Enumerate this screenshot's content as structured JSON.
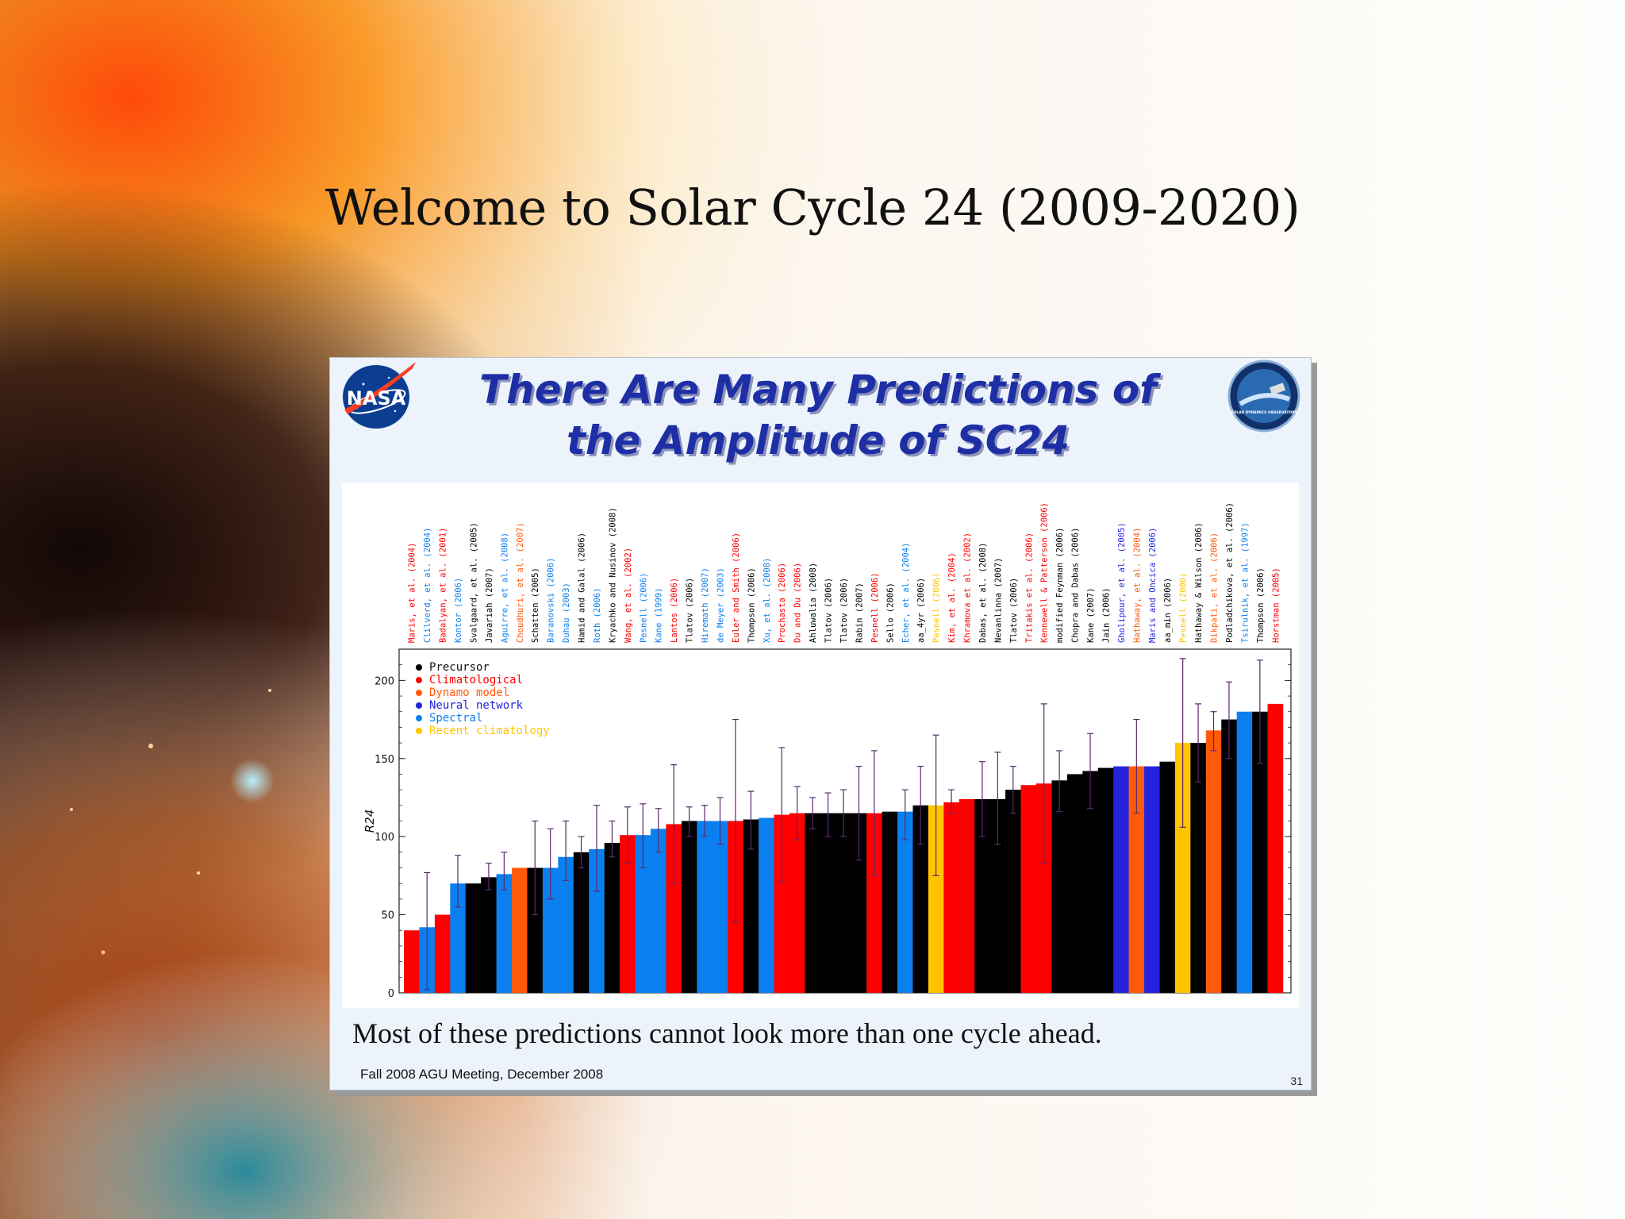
{
  "slide": {
    "title": "Welcome to Solar Cycle 24 (2009-2020)"
  },
  "inner": {
    "title_line1": "There Are Many Predictions of",
    "title_line2": "the Amplitude of SC24",
    "caption": "Most of these predictions cannot look more than one cycle ahead.",
    "footer": "Fall 2008 AGU Meeting, December 2008",
    "page_number": "31",
    "nasa_logo_text": "NASA",
    "sdo_logo_text": "SOLAR DYNAMICS OBSERVATORY"
  },
  "colors": {
    "Precursor": "#000000",
    "Climatological": "#ff0000",
    "Dynamo model": "#ff5a0a",
    "Neural network": "#2424dc",
    "Spectral": "#0a80f0",
    "Recent climatology": "#ffc400",
    "error_bar": "#5a2a6a",
    "title_blue": "#1e2fa6"
  },
  "chart_data": {
    "type": "bar",
    "ylabel": "R24",
    "ylim": [
      0,
      220
    ],
    "yticks": [
      0,
      50,
      100,
      150,
      200
    ],
    "legend": {
      "position": "top-left",
      "entries": [
        "Precursor",
        "Climatological",
        "Dynamo model",
        "Neural network",
        "Spectral",
        "Recent climatology"
      ]
    },
    "bars": [
      {
        "label": "Maris, et al. (2004)",
        "cat": "Climatological",
        "value": 40
      },
      {
        "label": "Clilverd, et al. (2004)",
        "cat": "Spectral",
        "value": 42,
        "err": [
          2,
          77
        ]
      },
      {
        "label": "Badalyan, et al. (2001)",
        "cat": "Climatological",
        "value": 50
      },
      {
        "label": "Kontor (2006)",
        "cat": "Spectral",
        "value": 70,
        "err": [
          55,
          88
        ]
      },
      {
        "label": "Svalgaard, et al. (2005)",
        "cat": "Precursor",
        "value": 70
      },
      {
        "label": "Javariah (2007)",
        "cat": "Precursor",
        "value": 74,
        "err": [
          66,
          83
        ]
      },
      {
        "label": "Aguirre, et al. (2008)",
        "cat": "Spectral",
        "value": 76,
        "err": [
          66,
          90
        ]
      },
      {
        "label": "Choudhuri, et al. (2007)",
        "cat": "Dynamo model",
        "value": 80
      },
      {
        "label": "Schatten (2005)",
        "cat": "Precursor",
        "value": 80,
        "err": [
          50,
          110
        ]
      },
      {
        "label": "Baranovski (2006)",
        "cat": "Spectral",
        "value": 80,
        "err": [
          60,
          105
        ]
      },
      {
        "label": "Duhau (2003)",
        "cat": "Spectral",
        "value": 87,
        "err": [
          72,
          110
        ]
      },
      {
        "label": "Hamid and Galal (2006)",
        "cat": "Precursor",
        "value": 90,
        "err": [
          80,
          100
        ]
      },
      {
        "label": "Roth (2006)",
        "cat": "Spectral",
        "value": 92,
        "err": [
          65,
          120
        ]
      },
      {
        "label": "Kryachko and Nusinov (2008)",
        "cat": "Precursor",
        "value": 96,
        "err": [
          87,
          110
        ]
      },
      {
        "label": "Wang, et al. (2002)",
        "cat": "Climatological",
        "value": 101,
        "err": [
          83,
          119
        ]
      },
      {
        "label": "Pesnell (2006)",
        "cat": "Spectral",
        "value": 101,
        "err": [
          80,
          121
        ]
      },
      {
        "label": "Kane (1999)",
        "cat": "Spectral",
        "value": 105,
        "err": [
          90,
          118
        ]
      },
      {
        "label": "Lantos (2006)",
        "cat": "Climatological",
        "value": 108,
        "err": [
          70,
          146
        ]
      },
      {
        "label": "Tlatov (2006)",
        "cat": "Precursor",
        "value": 110,
        "err": [
          100,
          119
        ]
      },
      {
        "label": "Hiremath (2007)",
        "cat": "Spectral",
        "value": 110,
        "err": [
          100,
          120
        ]
      },
      {
        "label": "de Meyer (2003)",
        "cat": "Spectral",
        "value": 110,
        "err": [
          95,
          125
        ]
      },
      {
        "label": "Euler and Smith (2006)",
        "cat": "Climatological",
        "value": 110,
        "err": [
          45,
          175
        ]
      },
      {
        "label": "Thompson (2006)",
        "cat": "Precursor",
        "value": 111,
        "err": [
          92,
          129
        ]
      },
      {
        "label": "Xu, et al. (2008)",
        "cat": "Spectral",
        "value": 112
      },
      {
        "label": "Prochasta (2006)",
        "cat": "Climatological",
        "value": 114,
        "err": [
          71,
          157
        ]
      },
      {
        "label": "Du and Du (2006)",
        "cat": "Climatological",
        "value": 115,
        "err": [
          98,
          132
        ]
      },
      {
        "label": "Ahluwalia (2008)",
        "cat": "Precursor",
        "value": 115,
        "err": [
          105,
          125
        ]
      },
      {
        "label": "Tlatov (2006)",
        "cat": "Precursor",
        "value": 115,
        "err": [
          100,
          128
        ]
      },
      {
        "label": "Tlatov (2006)",
        "cat": "Precursor",
        "value": 115,
        "err": [
          100,
          130
        ]
      },
      {
        "label": "Rabin (2007)",
        "cat": "Precursor",
        "value": 115,
        "err": [
          85,
          145
        ]
      },
      {
        "label": "Pesnell (2006)",
        "cat": "Climatological",
        "value": 115,
        "err": [
          75,
          155
        ]
      },
      {
        "label": "Sello (2006)",
        "cat": "Precursor",
        "value": 116
      },
      {
        "label": "Echer, et al. (2004)",
        "cat": "Spectral",
        "value": 116,
        "err": [
          98,
          130
        ]
      },
      {
        "label": "aa_4yr (2006)",
        "cat": "Precursor",
        "value": 120,
        "err": [
          95,
          145
        ]
      },
      {
        "label": "Pesnell (2006)",
        "cat": "Recent climatology",
        "value": 120,
        "err": [
          75,
          165
        ]
      },
      {
        "label": "Kim, et al. (2004)",
        "cat": "Climatological",
        "value": 122,
        "err": [
          115,
          130
        ]
      },
      {
        "label": "Khramova et al. (2002)",
        "cat": "Climatological",
        "value": 124
      },
      {
        "label": "Dabas, et al. (2008)",
        "cat": "Precursor",
        "value": 124,
        "err": [
          100,
          148
        ]
      },
      {
        "label": "Nevanlinna (2007)",
        "cat": "Precursor",
        "value": 124,
        "err": [
          95,
          154
        ]
      },
      {
        "label": "Tlatov (2006)",
        "cat": "Precursor",
        "value": 130,
        "err": [
          115,
          145
        ]
      },
      {
        "label": "Tritakis et al. (2006)",
        "cat": "Climatological",
        "value": 133
      },
      {
        "label": "Kennewell & Patterson (2006)",
        "cat": "Climatological",
        "value": 134,
        "err": [
          83,
          185
        ]
      },
      {
        "label": "modified Feynman (2006)",
        "cat": "Precursor",
        "value": 136,
        "err": [
          116,
          155
        ]
      },
      {
        "label": "Chopra and Dabas (2006)",
        "cat": "Precursor",
        "value": 140
      },
      {
        "label": "Kane (2007)",
        "cat": "Precursor",
        "value": 142,
        "err": [
          118,
          166
        ]
      },
      {
        "label": "Jain (2006)",
        "cat": "Precursor",
        "value": 144
      },
      {
        "label": "Gholipour, et al. (2005)",
        "cat": "Neural network",
        "value": 145
      },
      {
        "label": "Hathaway, et al. (2004)",
        "cat": "Dynamo model",
        "value": 145,
        "err": [
          115,
          175
        ]
      },
      {
        "label": "Maris and Oncica (2006)",
        "cat": "Neural network",
        "value": 145
      },
      {
        "label": "aa_min (2006)",
        "cat": "Precursor",
        "value": 148
      },
      {
        "label": "Pesnell (2006)",
        "cat": "Recent climatology",
        "value": 160,
        "err": [
          106,
          214
        ]
      },
      {
        "label": "Hathaway & Wilson (2006)",
        "cat": "Precursor",
        "value": 160,
        "err": [
          135,
          185
        ]
      },
      {
        "label": "Dikpati, et al. (2006)",
        "cat": "Dynamo model",
        "value": 168,
        "err": [
          155,
          180
        ]
      },
      {
        "label": "Podladchikova, et al. (2006)",
        "cat": "Precursor",
        "value": 175,
        "err": [
          150,
          199
        ]
      },
      {
        "label": "Tsirulnik, et al. (1997)",
        "cat": "Spectral",
        "value": 180
      },
      {
        "label": "Thompson (2006)",
        "cat": "Precursor",
        "value": 180,
        "err": [
          147,
          213
        ]
      },
      {
        "label": "Horstman (2005)",
        "cat": "Climatological",
        "value": 185
      }
    ]
  }
}
